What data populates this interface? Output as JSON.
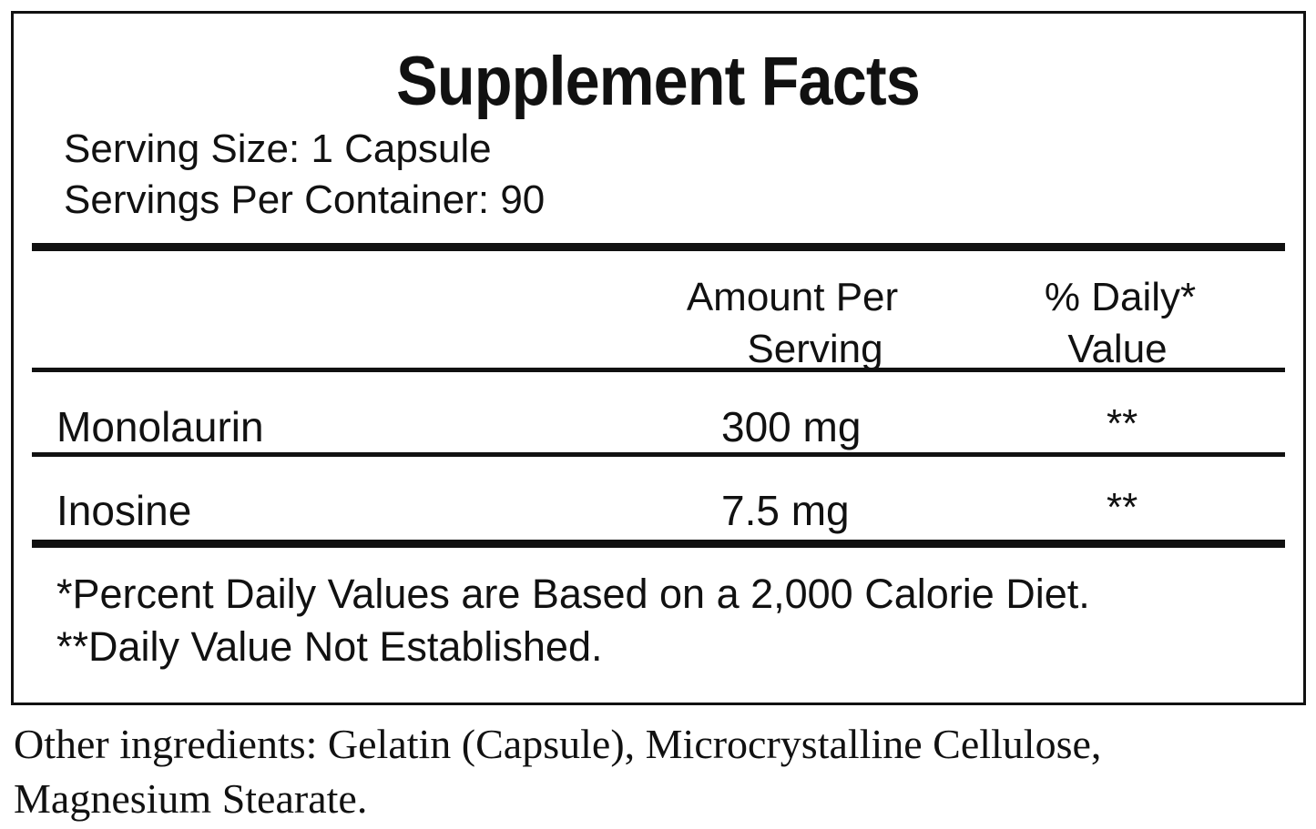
{
  "title": "Supplement Facts",
  "serving_size": "Serving Size: 1 Capsule",
  "servings_per_container": "Servings Per Container: 90",
  "columns": {
    "amount_line1": "Amount Per",
    "amount_line2": "Serving",
    "dv_line1": "% Daily*",
    "dv_line2": "Value"
  },
  "rows": [
    {
      "name": "Monolaurin",
      "amount": "300 mg",
      "dv": "**"
    },
    {
      "name": "Inosine",
      "amount": "7.5 mg",
      "dv": "**"
    }
  ],
  "footnotes": [
    "*Percent Daily Values are Based on a 2,000 Calorie Diet.",
    "**Daily Value Not Established."
  ],
  "other_ingredients": [
    "Other ingredients: Gelatin (Capsule), Microcrystalline Cellulose,",
    "Magnesium Stearate."
  ]
}
